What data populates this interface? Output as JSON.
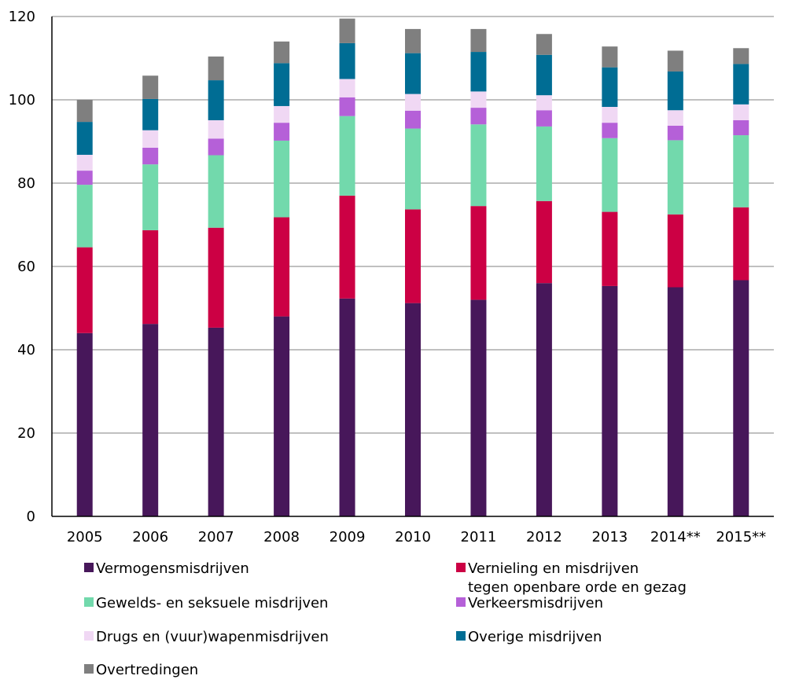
{
  "chart_data": {
    "type": "bar",
    "stacked": true,
    "title": "",
    "xlabel": "",
    "ylabel": "",
    "ylim": [
      0,
      120
    ],
    "yticks": [
      0,
      20,
      40,
      60,
      80,
      100,
      120
    ],
    "grid": true,
    "legend_position": "bottom",
    "categories": [
      "2005",
      "2006",
      "2007",
      "2008",
      "2009",
      "2010",
      "2011",
      "2012",
      "2013",
      "2014**",
      "2015**"
    ],
    "series": [
      {
        "name": "Vermogensmisdrijven",
        "color": "#47175a",
        "values": [
          44.0,
          46.2,
          45.3,
          48.0,
          52.3,
          51.2,
          52.0,
          56.0,
          55.3,
          55.0,
          56.7
        ]
      },
      {
        "name": "Vernieling en misdrijven tegen openbare orde en gezag",
        "color": "#cc0044",
        "values": [
          20.6,
          22.5,
          24.0,
          23.8,
          24.7,
          22.5,
          22.5,
          19.7,
          17.8,
          17.5,
          17.5
        ]
      },
      {
        "name": "Gewelds- en seksuele misdrijven",
        "color": "#72d9ac",
        "values": [
          15.0,
          15.8,
          17.4,
          18.4,
          19.1,
          19.4,
          19.6,
          17.9,
          17.7,
          17.8,
          17.3
        ]
      },
      {
        "name": "Verkeersmisdrijven",
        "color": "#b560d8",
        "values": [
          3.4,
          4.0,
          4.0,
          4.3,
          4.5,
          4.3,
          4.0,
          3.9,
          3.7,
          3.5,
          3.6
        ]
      },
      {
        "name": "Drugs en (vuur)wapenmisdrijven",
        "color": "#f0d8f4",
        "values": [
          3.8,
          4.2,
          4.4,
          4.0,
          4.4,
          4.0,
          3.9,
          3.6,
          3.8,
          3.7,
          3.8
        ]
      },
      {
        "name": "Overige misdrijven",
        "color": "#006d94",
        "values": [
          7.9,
          7.5,
          9.6,
          10.3,
          8.6,
          9.8,
          9.5,
          9.7,
          9.5,
          9.3,
          9.7
        ]
      },
      {
        "name": "Overtredingen",
        "color": "#7f7f7f",
        "values": [
          5.3,
          5.6,
          5.7,
          5.2,
          5.9,
          5.8,
          5.5,
          5.0,
          5.0,
          5.0,
          3.8
        ]
      }
    ],
    "legend": [
      [
        "Vermogensmisdrijven"
      ],
      [
        "Vernieling en misdrijven",
        "tegen openbare orde en gezag"
      ],
      [
        "Gewelds- en seksuele misdrijven"
      ],
      [
        "Verkeersmisdrijven"
      ],
      [
        "Drugs en (vuur)wapenmisdrijven"
      ],
      [
        "Overige misdrijven"
      ],
      [
        "Overtredingen"
      ]
    ]
  }
}
